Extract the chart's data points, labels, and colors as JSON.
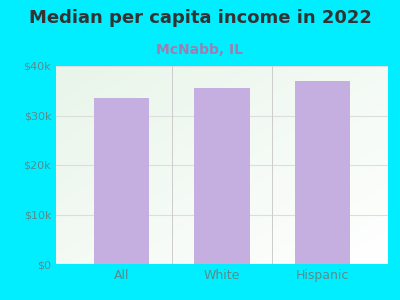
{
  "title": "Median per capita income in 2022",
  "subtitle": "McNabb, IL",
  "categories": [
    "All",
    "White",
    "Hispanic"
  ],
  "values": [
    33500,
    35500,
    37000
  ],
  "bar_color": "#c5aee0",
  "background_color": "#00eeff",
  "plot_bg_top_left": "#e8f5e9",
  "plot_bg_bottom_right": "#ffffff",
  "title_fontsize": 13,
  "subtitle_fontsize": 10,
  "title_color": "#333333",
  "subtitle_color": "#9e7fb0",
  "tick_label_color": "#5a8a8a",
  "ylim": [
    0,
    40000
  ],
  "yticks": [
    0,
    10000,
    20000,
    30000,
    40000
  ],
  "ytick_labels": [
    "$0",
    "$10k",
    "$20k",
    "$30k",
    "$40k"
  ]
}
